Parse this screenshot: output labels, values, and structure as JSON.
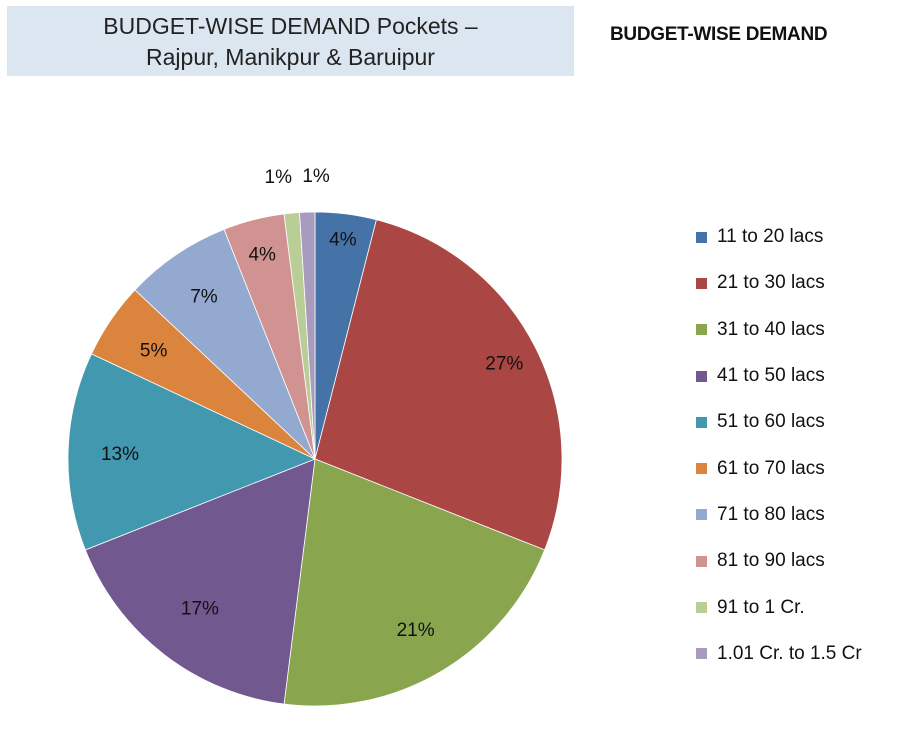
{
  "header": {
    "title_line1": "BUDGET-WISE DEMAND Pockets –",
    "title_line2": "Rajpur, Manikpur & Baruipur"
  },
  "chart_data": {
    "type": "pie",
    "title": "BUDGET-WISE DEMAND",
    "legend_position": "right",
    "categories": [
      "11 to 20 lacs",
      "21 to 30 lacs",
      "31 to 40 lacs",
      "41 to 50 lacs",
      "51 to 60 lacs",
      "61 to 70 lacs",
      "71 to 80 lacs",
      "81 to 90 lacs",
      "91 to 1 Cr.",
      "1.01 Cr. to 1.5 Cr"
    ],
    "values": [
      4,
      27,
      21,
      17,
      13,
      5,
      7,
      4,
      1,
      1
    ],
    "labels": [
      "4%",
      "27%",
      "21%",
      "17%",
      "13%",
      "5%",
      "7%",
      "4%",
      "1%",
      "1%"
    ],
    "colors": [
      "#4572a7",
      "#aa4643",
      "#89a54e",
      "#71588f",
      "#4198af",
      "#db843d",
      "#93a9cf",
      "#d19392",
      "#b9cd96",
      "#a99bbd"
    ]
  }
}
